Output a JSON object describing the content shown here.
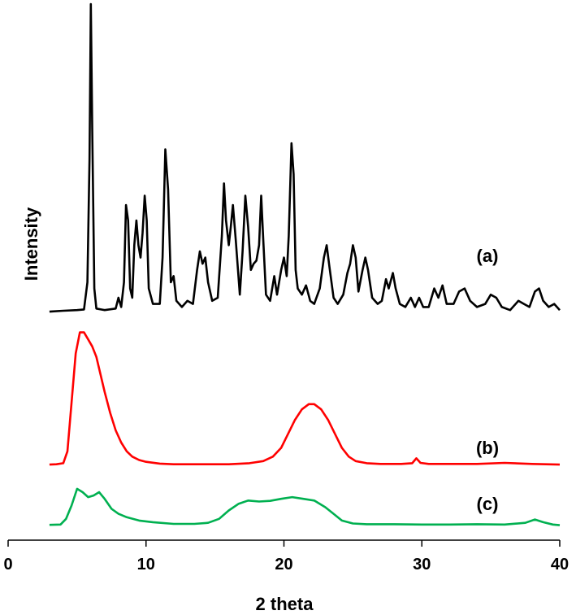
{
  "chart_data": {
    "type": "line",
    "title": "",
    "xlabel": "2 theta",
    "ylabel": "Intensity",
    "xlim": [
      0,
      40
    ],
    "x_ticks": [
      0,
      10,
      20,
      30,
      40
    ],
    "x_tick_labels": [
      "0",
      "10",
      "20",
      "30",
      "40"
    ],
    "ylim": [
      0,
      100
    ],
    "y_ticks_shown": false,
    "grid": false,
    "legend": "none",
    "series_note_units": "arbitrary intensity units (stacked, vertically offset)",
    "series": [
      {
        "name": "(a)",
        "color": "#000000",
        "offset": 70,
        "points": [
          [
            3.0,
            0.5
          ],
          [
            4.0,
            0.8
          ],
          [
            5.0,
            1.0
          ],
          [
            5.5,
            1.2
          ],
          [
            5.75,
            10
          ],
          [
            5.9,
            50
          ],
          [
            6.0,
            100
          ],
          [
            6.1,
            60
          ],
          [
            6.25,
            8
          ],
          [
            6.4,
            1.5
          ],
          [
            7.0,
            1.0
          ],
          [
            7.8,
            1.5
          ],
          [
            8.0,
            5
          ],
          [
            8.2,
            2
          ],
          [
            8.4,
            10
          ],
          [
            8.55,
            35
          ],
          [
            8.7,
            30
          ],
          [
            8.85,
            8
          ],
          [
            9.0,
            5
          ],
          [
            9.15,
            22
          ],
          [
            9.3,
            30
          ],
          [
            9.45,
            22
          ],
          [
            9.6,
            18
          ],
          [
            9.75,
            26
          ],
          [
            9.9,
            38
          ],
          [
            10.05,
            30
          ],
          [
            10.2,
            8
          ],
          [
            10.5,
            3
          ],
          [
            11.0,
            3
          ],
          [
            11.2,
            18
          ],
          [
            11.4,
            53
          ],
          [
            11.6,
            40
          ],
          [
            11.8,
            10
          ],
          [
            12.0,
            12
          ],
          [
            12.2,
            4
          ],
          [
            12.6,
            2
          ],
          [
            13.0,
            4
          ],
          [
            13.4,
            3
          ],
          [
            13.7,
            14
          ],
          [
            13.9,
            20
          ],
          [
            14.1,
            16
          ],
          [
            14.3,
            18
          ],
          [
            14.5,
            10
          ],
          [
            14.8,
            4
          ],
          [
            15.2,
            5
          ],
          [
            15.5,
            25
          ],
          [
            15.65,
            42
          ],
          [
            15.8,
            30
          ],
          [
            16.0,
            22
          ],
          [
            16.15,
            28
          ],
          [
            16.3,
            35
          ],
          [
            16.5,
            24
          ],
          [
            16.8,
            6
          ],
          [
            17.0,
            20
          ],
          [
            17.2,
            38
          ],
          [
            17.4,
            28
          ],
          [
            17.6,
            14
          ],
          [
            17.8,
            16
          ],
          [
            18.0,
            17
          ],
          [
            18.2,
            22
          ],
          [
            18.35,
            38
          ],
          [
            18.5,
            24
          ],
          [
            18.7,
            6
          ],
          [
            19.0,
            4
          ],
          [
            19.3,
            12
          ],
          [
            19.5,
            6
          ],
          [
            19.8,
            14
          ],
          [
            20.0,
            18
          ],
          [
            20.2,
            12
          ],
          [
            20.35,
            25
          ],
          [
            20.55,
            55
          ],
          [
            20.7,
            45
          ],
          [
            20.85,
            14
          ],
          [
            21.0,
            8
          ],
          [
            21.3,
            6
          ],
          [
            21.6,
            9
          ],
          [
            21.9,
            4
          ],
          [
            22.2,
            3
          ],
          [
            22.6,
            8
          ],
          [
            22.9,
            18
          ],
          [
            23.1,
            22
          ],
          [
            23.3,
            15
          ],
          [
            23.6,
            5
          ],
          [
            23.9,
            3
          ],
          [
            24.3,
            6
          ],
          [
            24.6,
            13
          ],
          [
            24.8,
            16
          ],
          [
            25.0,
            22
          ],
          [
            25.2,
            18
          ],
          [
            25.4,
            7
          ],
          [
            25.7,
            14
          ],
          [
            25.9,
            18
          ],
          [
            26.1,
            14
          ],
          [
            26.4,
            5
          ],
          [
            26.8,
            3
          ],
          [
            27.1,
            4
          ],
          [
            27.4,
            11
          ],
          [
            27.6,
            8
          ],
          [
            27.9,
            13
          ],
          [
            28.1,
            8
          ],
          [
            28.4,
            3
          ],
          [
            28.8,
            2
          ],
          [
            29.2,
            5
          ],
          [
            29.5,
            2
          ],
          [
            29.8,
            5
          ],
          [
            30.1,
            2
          ],
          [
            30.5,
            2
          ],
          [
            30.9,
            8
          ],
          [
            31.2,
            5
          ],
          [
            31.5,
            9
          ],
          [
            31.8,
            3
          ],
          [
            32.3,
            3
          ],
          [
            32.7,
            7
          ],
          [
            33.1,
            8
          ],
          [
            33.5,
            4
          ],
          [
            34.0,
            2
          ],
          [
            34.6,
            3
          ],
          [
            35.0,
            6
          ],
          [
            35.4,
            5
          ],
          [
            35.8,
            2
          ],
          [
            36.4,
            1
          ],
          [
            37.0,
            4
          ],
          [
            37.4,
            3
          ],
          [
            37.8,
            2
          ],
          [
            38.2,
            7
          ],
          [
            38.5,
            8
          ],
          [
            38.8,
            4
          ],
          [
            39.2,
            2
          ],
          [
            39.6,
            3
          ],
          [
            40.0,
            1
          ]
        ]
      },
      {
        "name": "(b)",
        "color": "#ff0000",
        "offset": 23,
        "points": [
          [
            3.0,
            0.2
          ],
          [
            3.5,
            0.3
          ],
          [
            4.0,
            0.6
          ],
          [
            4.3,
            4
          ],
          [
            4.6,
            18
          ],
          [
            4.9,
            32
          ],
          [
            5.2,
            38
          ],
          [
            5.5,
            38
          ],
          [
            5.8,
            36
          ],
          [
            6.1,
            34
          ],
          [
            6.4,
            31
          ],
          [
            6.7,
            26
          ],
          [
            7.0,
            21
          ],
          [
            7.4,
            15
          ],
          [
            7.8,
            10
          ],
          [
            8.2,
            6.5
          ],
          [
            8.6,
            4
          ],
          [
            9.0,
            2.5
          ],
          [
            9.5,
            1.5
          ],
          [
            10.0,
            1
          ],
          [
            11.0,
            0.5
          ],
          [
            12.0,
            0.3
          ],
          [
            14.0,
            0.3
          ],
          [
            16.0,
            0.3
          ],
          [
            17.5,
            0.6
          ],
          [
            18.5,
            1.2
          ],
          [
            19.2,
            2.5
          ],
          [
            19.8,
            5
          ],
          [
            20.3,
            9
          ],
          [
            20.8,
            13
          ],
          [
            21.3,
            16
          ],
          [
            21.8,
            17.5
          ],
          [
            22.2,
            17.5
          ],
          [
            22.7,
            16
          ],
          [
            23.2,
            13
          ],
          [
            23.7,
            9
          ],
          [
            24.2,
            5
          ],
          [
            24.7,
            2.5
          ],
          [
            25.2,
            1.2
          ],
          [
            26.0,
            0.6
          ],
          [
            27.0,
            0.4
          ],
          [
            28.5,
            0.4
          ],
          [
            29.3,
            0.6
          ],
          [
            29.6,
            2
          ],
          [
            29.9,
            0.7
          ],
          [
            30.5,
            0.4
          ],
          [
            32.0,
            0.4
          ],
          [
            34.0,
            0.4
          ],
          [
            36.0,
            0.7
          ],
          [
            38.0,
            0.4
          ],
          [
            40.0,
            0.2
          ]
        ]
      },
      {
        "name": "(c)",
        "color": "#00b050",
        "offset": 0,
        "points": [
          [
            3.0,
            0.2
          ],
          [
            3.8,
            0.3
          ],
          [
            4.2,
            2
          ],
          [
            4.6,
            6
          ],
          [
            5.0,
            11
          ],
          [
            5.4,
            10
          ],
          [
            5.8,
            8.5
          ],
          [
            6.2,
            9
          ],
          [
            6.6,
            10
          ],
          [
            7.0,
            8
          ],
          [
            7.5,
            5
          ],
          [
            8.0,
            3.5
          ],
          [
            8.6,
            2.5
          ],
          [
            9.5,
            1.5
          ],
          [
            10.5,
            1
          ],
          [
            12.0,
            0.5
          ],
          [
            13.5,
            0.5
          ],
          [
            14.5,
            0.8
          ],
          [
            15.3,
            2
          ],
          [
            16.0,
            4.5
          ],
          [
            16.7,
            6.5
          ],
          [
            17.4,
            7.5
          ],
          [
            18.2,
            7.2
          ],
          [
            19.0,
            7.4
          ],
          [
            19.8,
            8
          ],
          [
            20.6,
            8.5
          ],
          [
            21.4,
            8
          ],
          [
            22.2,
            7.5
          ],
          [
            23.0,
            5.5
          ],
          [
            23.6,
            3.5
          ],
          [
            24.2,
            1.5
          ],
          [
            25.0,
            0.6
          ],
          [
            26.0,
            0.4
          ],
          [
            28.0,
            0.4
          ],
          [
            30.0,
            0.3
          ],
          [
            32.0,
            0.3
          ],
          [
            34.0,
            0.4
          ],
          [
            36.0,
            0.3
          ],
          [
            37.5,
            0.8
          ],
          [
            38.2,
            1.8
          ],
          [
            38.8,
            1.0
          ],
          [
            39.5,
            0.3
          ],
          [
            40.0,
            0.1
          ]
        ]
      }
    ]
  }
}
